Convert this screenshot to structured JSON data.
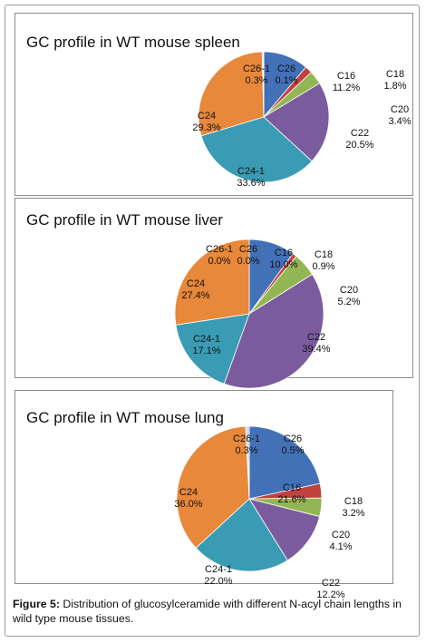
{
  "colors": {
    "C16": "#4371b8",
    "C18": "#c1413e",
    "C20": "#93b654",
    "C22": "#7a5c9e",
    "C24-1": "#3a9bb4",
    "C24": "#e7883a",
    "C26-1": "#b9a6cc",
    "C26": "#a9c3e4"
  },
  "chart_data": [
    {
      "type": "pie",
      "title": "GC profile in WT mouse spleen",
      "categories": [
        "C16",
        "C18",
        "C20",
        "C22",
        "C24-1",
        "C24",
        "C26-1",
        "C26"
      ],
      "values": [
        11.2,
        1.8,
        3.4,
        20.5,
        33.6,
        29.3,
        0.3,
        0.1
      ],
      "labels": [
        "11.2%",
        "1.8%",
        "3.4%",
        "20.5%",
        "33.6%",
        "29.3%",
        "0.3%",
        "0.1%"
      ]
    },
    {
      "type": "pie",
      "title": "GC profile in WT mouse liver",
      "categories": [
        "C16",
        "C18",
        "C20",
        "C22",
        "C24-1",
        "C24",
        "C26-1",
        "C26"
      ],
      "values": [
        10.0,
        0.9,
        5.2,
        39.4,
        17.1,
        27.4,
        0.0,
        0.0
      ],
      "labels": [
        "10.0%",
        "0.9%",
        "5.2%",
        "39.4%",
        "17.1%",
        "27.4%",
        "0.0%",
        "0.0%"
      ]
    },
    {
      "type": "pie",
      "title": "GC profile in WT mouse lung",
      "categories": [
        "C16",
        "C18",
        "C20",
        "C22",
        "C24-1",
        "C24",
        "C26-1",
        "C26"
      ],
      "values": [
        21.6,
        3.2,
        4.1,
        12.2,
        22.0,
        36.0,
        0.3,
        0.5
      ],
      "labels": [
        "21.6%",
        "3.2%",
        "4.1%",
        "12.2%",
        "22.0%",
        "36.0%",
        "0.3%",
        "0.5%"
      ]
    }
  ],
  "caption": {
    "label": "Figure 5:",
    "text": " Distribution of glucosylceramide with different N-acyl chain lengths in wild type mouse tissues."
  }
}
